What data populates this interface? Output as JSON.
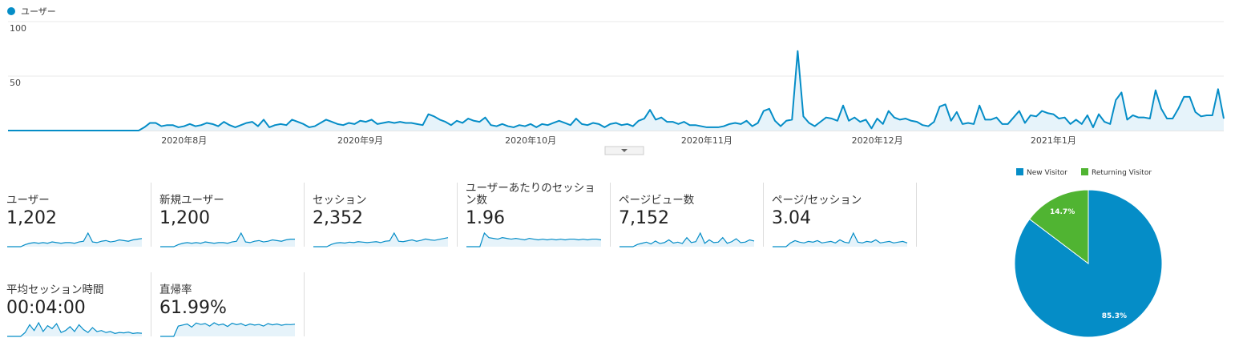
{
  "chart_data": [
    {
      "type": "line",
      "categories": [
        null,
        null,
        null,
        null,
        null,
        null,
        null,
        null,
        null,
        null,
        null,
        null,
        null,
        null,
        null,
        null,
        null,
        null,
        null,
        null,
        null,
        null,
        null,
        null,
        null,
        null,
        null,
        null,
        null,
        null,
        null,
        "2020年8月",
        null,
        null,
        null,
        null,
        null,
        null,
        null,
        null,
        null,
        null,
        null,
        null,
        null,
        null,
        null,
        null,
        null,
        null,
        null,
        null,
        null,
        null,
        null,
        null,
        null,
        null,
        null,
        null,
        null,
        null,
        "2020年9月",
        null,
        null,
        null,
        null,
        null,
        null,
        null,
        null,
        null,
        null,
        null,
        null,
        null,
        null,
        null,
        null,
        null,
        null,
        null,
        null,
        null,
        null,
        null,
        null,
        null,
        null,
        null,
        null,
        null,
        "2020年10月",
        null,
        null,
        null,
        null,
        null,
        null,
        null,
        null,
        null,
        null,
        null,
        null,
        null,
        null,
        null,
        null,
        null,
        null,
        null,
        null,
        null,
        null,
        null,
        null,
        null,
        null,
        null,
        null,
        null,
        null,
        "2020年11月",
        null,
        null,
        null,
        null,
        null,
        null,
        null,
        null,
        null,
        null,
        null,
        null,
        null,
        null,
        null,
        null,
        null,
        null,
        null,
        null,
        null,
        null,
        null,
        null,
        null,
        null,
        null,
        null,
        null,
        "2020年12月",
        null,
        null,
        null,
        null,
        null,
        null,
        null,
        null,
        null,
        null,
        null,
        null,
        null,
        null,
        null,
        null,
        null,
        null,
        null,
        null,
        null,
        null,
        null,
        null,
        null,
        null,
        null,
        null,
        null,
        null,
        "2021年1月",
        null,
        null,
        null,
        null,
        null,
        null,
        null,
        null,
        null,
        null,
        null,
        null,
        null,
        null,
        null,
        null,
        null,
        null,
        null,
        null,
        null,
        null,
        null,
        null,
        null,
        null,
        null,
        null,
        null,
        null
      ],
      "series": [
        {
          "name": "ユーザー",
          "color": "#058dc7",
          "values": [
            0,
            0,
            0,
            0,
            0,
            0,
            0,
            0,
            0,
            0,
            0,
            0,
            0,
            0,
            0,
            0,
            0,
            0,
            0,
            0,
            0,
            0,
            0,
            0,
            3,
            7,
            7,
            4,
            5,
            5,
            3,
            4,
            6,
            4,
            5,
            7,
            6,
            4,
            8,
            5,
            3,
            5,
            7,
            8,
            4,
            10,
            3,
            5,
            6,
            5,
            10,
            8,
            6,
            3,
            4,
            7,
            10,
            8,
            6,
            5,
            7,
            6,
            9,
            8,
            10,
            6,
            7,
            8,
            7,
            8,
            7,
            7,
            6,
            5,
            15,
            13,
            10,
            8,
            5,
            9,
            7,
            11,
            9,
            8,
            12,
            5,
            4,
            6,
            4,
            3,
            5,
            4,
            6,
            3,
            6,
            5,
            7,
            9,
            7,
            5,
            11,
            6,
            5,
            7,
            6,
            3,
            6,
            7,
            5,
            6,
            4,
            9,
            11,
            19,
            10,
            12,
            8,
            8,
            6,
            8,
            5,
            5,
            4,
            3,
            3,
            3,
            4,
            6,
            7,
            6,
            9,
            4,
            7,
            18,
            20,
            9,
            4,
            9,
            10,
            73,
            13,
            7,
            4,
            8,
            12,
            11,
            9,
            23,
            9,
            12,
            8,
            10,
            2,
            11,
            6,
            18,
            12,
            10,
            11,
            9,
            8,
            5,
            4,
            8,
            22,
            24,
            9,
            17,
            6,
            7,
            6,
            23,
            10,
            10,
            12,
            6,
            6,
            12,
            18,
            7,
            14,
            13,
            18,
            16,
            15,
            11,
            12,
            6,
            10,
            6,
            14,
            3,
            15,
            8,
            6,
            28,
            35,
            10,
            14,
            12,
            12,
            11,
            37,
            20,
            11,
            11,
            20,
            31,
            31,
            17,
            13,
            14,
            14,
            38,
            11
          ]
        }
      ],
      "ylim": [
        0,
        100
      ],
      "yticks": [
        50,
        100
      ],
      "grid": true
    },
    {
      "type": "pie",
      "categories": [
        "New Visitor",
        "Returning Visitor"
      ],
      "values": [
        85.3,
        14.7
      ],
      "value_labels": [
        "85.3%",
        "14.7%"
      ],
      "colors": [
        "#058dc7",
        "#50b432"
      ]
    }
  ],
  "metrics": [
    {
      "label": "ユーザー",
      "value": "1,202",
      "sparkline": [
        0,
        0,
        0,
        0,
        3,
        5,
        6,
        5,
        6,
        5,
        7,
        6,
        5,
        6,
        6,
        5,
        7,
        8,
        20,
        7,
        6,
        8,
        9,
        7,
        8,
        10,
        9,
        8,
        10,
        11,
        12
      ]
    },
    {
      "label": "新規ユーザー",
      "value": "1,200",
      "sparkline": [
        0,
        0,
        0,
        0,
        3,
        5,
        6,
        5,
        6,
        5,
        7,
        6,
        5,
        6,
        6,
        5,
        7,
        8,
        20,
        7,
        6,
        8,
        9,
        7,
        8,
        10,
        9,
        8,
        10,
        11,
        11
      ]
    },
    {
      "label": "セッション",
      "value": "2,352",
      "sparkline": [
        0,
        0,
        0,
        0,
        5,
        8,
        9,
        8,
        10,
        9,
        11,
        10,
        9,
        10,
        11,
        9,
        12,
        13,
        30,
        12,
        11,
        13,
        15,
        12,
        14,
        17,
        15,
        14,
        16,
        18,
        20
      ]
    },
    {
      "label": "ユーザーあたりのセッション数",
      "value": "1.96",
      "sparkline": [
        0,
        0,
        0,
        0,
        18,
        12,
        11,
        10,
        12,
        11,
        10,
        11,
        10,
        9,
        11,
        10,
        9,
        10,
        9,
        10,
        9,
        10,
        9,
        10,
        10,
        9,
        10,
        9,
        10,
        10,
        9
      ]
    },
    {
      "label": "ページビュー数",
      "value": "7,152",
      "sparkline": [
        0,
        0,
        0,
        0,
        10,
        15,
        20,
        12,
        25,
        14,
        18,
        30,
        16,
        20,
        14,
        40,
        18,
        22,
        60,
        15,
        30,
        18,
        20,
        40,
        15,
        22,
        35,
        18,
        20,
        30,
        25
      ]
    },
    {
      "label": "ページ/セッション",
      "value": "3.04",
      "sparkline": [
        0,
        0,
        0,
        0,
        5,
        8,
        6,
        5,
        7,
        6,
        8,
        5,
        6,
        7,
        5,
        9,
        6,
        5,
        18,
        6,
        5,
        7,
        6,
        9,
        5,
        6,
        7,
        5,
        6,
        7,
        5
      ]
    },
    {
      "label": "平均セッション時間",
      "value": "00:04:00",
      "sparkline": [
        0,
        0,
        0,
        0,
        20,
        60,
        30,
        70,
        25,
        55,
        40,
        65,
        20,
        30,
        50,
        25,
        60,
        35,
        20,
        45,
        25,
        30,
        20,
        25,
        15,
        20,
        18,
        22,
        15,
        18,
        16
      ]
    },
    {
      "label": "直帰率",
      "value": "61.99%",
      "sparkline": [
        0,
        0,
        0,
        0,
        50,
        55,
        60,
        45,
        65,
        58,
        62,
        50,
        66,
        55,
        60,
        48,
        64,
        57,
        62,
        52,
        60,
        55,
        58,
        50,
        62,
        56,
        60,
        54,
        58,
        57,
        59
      ]
    }
  ]
}
